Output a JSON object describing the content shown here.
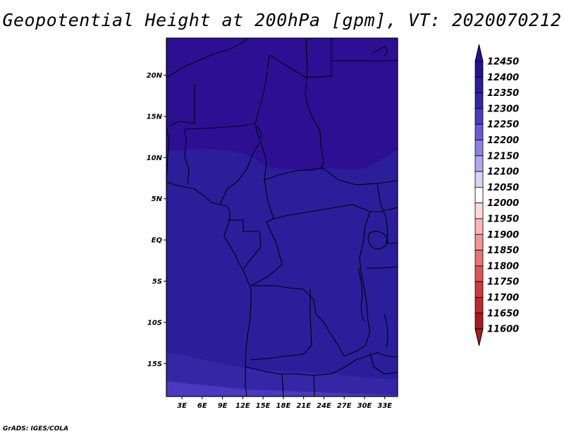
{
  "title": "Geopotential Height at 200hPa [gpm], VT: 2020070212",
  "credit": "GrADS: IGES/COLA",
  "map": {
    "lat_labels": [
      "20N",
      "15N",
      "10N",
      "5N",
      "EQ",
      "5S",
      "10S",
      "15S"
    ],
    "lon_labels": [
      "3E",
      "6E",
      "9E",
      "12E",
      "15E",
      "18E",
      "21E",
      "24E",
      "27E",
      "30E",
      "33E"
    ],
    "fill_colors": {
      "above_12400": "#2d0f94",
      "12350_12400": "#2b1e9b",
      "12300_12350": "#3327a6",
      "12250_12300": "#4a39c0"
    }
  },
  "colorbar": {
    "levels": [
      "12450",
      "12400",
      "12350",
      "12300",
      "12250",
      "12200",
      "12150",
      "12100",
      "12050",
      "12000",
      "11950",
      "11900",
      "11850",
      "11800",
      "11750",
      "11700",
      "11650",
      "11600"
    ],
    "colors": [
      "#2a0f93",
      "#2b1e9b",
      "#3327a6",
      "#4a3cc0",
      "#6a5ad6",
      "#8d80e6",
      "#b0a8f0",
      "#d6d2f8",
      "#ffffff",
      "#fcdada",
      "#f8b7b7",
      "#f19696",
      "#e87474",
      "#de5555",
      "#d13a3a",
      "#c22828",
      "#a81b1b"
    ],
    "top_color": "#2a0f93",
    "bottom_color": "#a81b1b"
  }
}
